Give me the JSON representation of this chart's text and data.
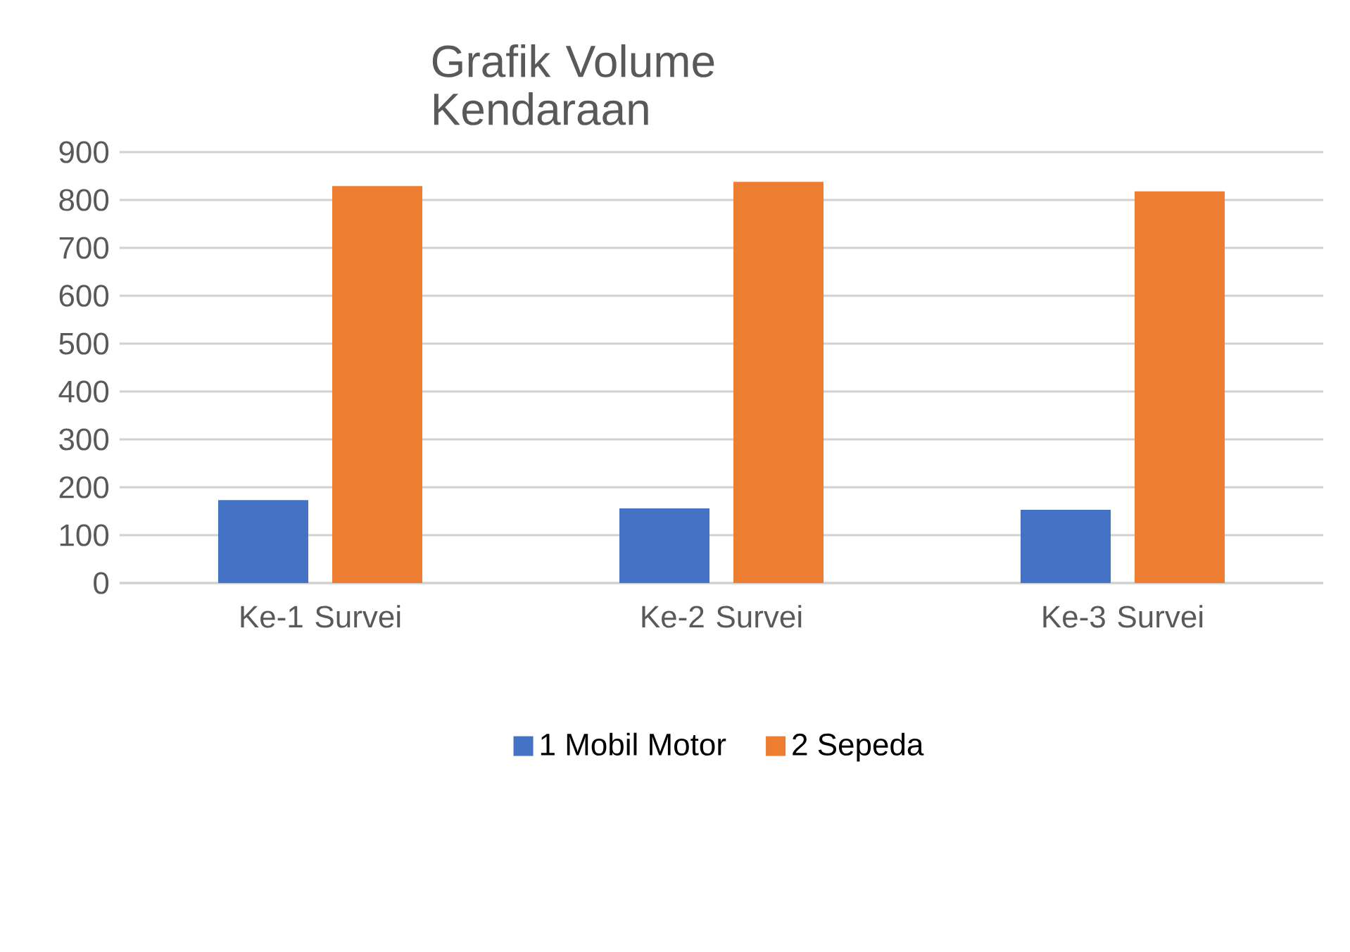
{
  "chart_data": {
    "type": "bar",
    "title": "Grafik Volume Kendaraan",
    "categories": [
      "Ke-1 Survei",
      "Ke-2 Survei",
      "Ke-3 Survei"
    ],
    "series": [
      {
        "name": "1 Mobil Motor",
        "color": "#4472c4",
        "values": [
          173,
          156,
          153
        ]
      },
      {
        "name": "2 Sepeda",
        "color": "#ed7d31",
        "values": [
          829,
          838,
          818
        ]
      }
    ],
    "ylim": [
      0,
      900
    ],
    "yticks": [
      0,
      100,
      200,
      300,
      400,
      500,
      600,
      700,
      800,
      900
    ],
    "grid": "y",
    "legend": "bottom"
  }
}
